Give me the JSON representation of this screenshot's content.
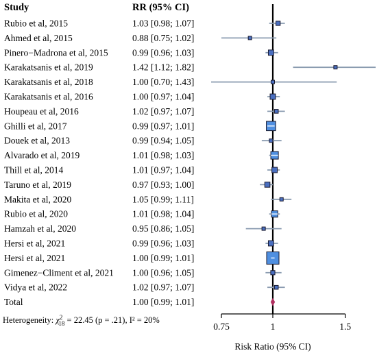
{
  "chart_data": {
    "type": "forest",
    "headers": {
      "study": "Study",
      "rr": "RR (95% CI)"
    },
    "studies": [
      {
        "study": "Rubio et al, 2015",
        "rr_text": "1.03 [0.98; 1.07]",
        "rr": 1.03,
        "lo": 0.98,
        "hi": 1.07
      },
      {
        "study": "Ahmed et al, 2015",
        "rr_text": "0.88 [0.75; 1.02]",
        "rr": 0.88,
        "lo": 0.75,
        "hi": 1.02
      },
      {
        "study": "Pinero−Madrona et al, 2015",
        "rr_text": "0.99 [0.96; 1.03]",
        "rr": 0.99,
        "lo": 0.96,
        "hi": 1.03
      },
      {
        "study": "Karakatsanis et al, 2019",
        "rr_text": "1.42 [1.12; 1.82]",
        "rr": 1.42,
        "lo": 1.12,
        "hi": 1.82
      },
      {
        "study": "Karakatsanis et al, 2018",
        "rr_text": "1.00 [0.70; 1.43]",
        "rr": 1.0,
        "lo": 0.7,
        "hi": 1.43
      },
      {
        "study": "Karakatsanis et al, 2016",
        "rr_text": "1.00 [0.97; 1.04]",
        "rr": 1.0,
        "lo": 0.97,
        "hi": 1.04
      },
      {
        "study": "Houpeau et al, 2016",
        "rr_text": "1.02 [0.97; 1.07]",
        "rr": 1.02,
        "lo": 0.97,
        "hi": 1.07
      },
      {
        "study": "Ghilli et al, 2017",
        "rr_text": "0.99 [0.97; 1.01]",
        "rr": 0.99,
        "lo": 0.97,
        "hi": 1.01
      },
      {
        "study": "Douek et al, 2013",
        "rr_text": "0.99 [0.94; 1.05]",
        "rr": 0.99,
        "lo": 0.94,
        "hi": 1.05
      },
      {
        "study": "Alvarado et al, 2019",
        "rr_text": "1.01 [0.98; 1.03]",
        "rr": 1.01,
        "lo": 0.98,
        "hi": 1.03
      },
      {
        "study": "Thill et al, 2014",
        "rr_text": "1.01 [0.97; 1.04]",
        "rr": 1.01,
        "lo": 0.97,
        "hi": 1.04
      },
      {
        "study": "Taruno et al, 2019",
        "rr_text": "0.97 [0.93; 1.00]",
        "rr": 0.97,
        "lo": 0.93,
        "hi": 1.0
      },
      {
        "study": "Makita et al, 2020",
        "rr_text": "1.05 [0.99; 1.11]",
        "rr": 1.05,
        "lo": 0.99,
        "hi": 1.11
      },
      {
        "study": "Rubio et al, 2020",
        "rr_text": "1.01 [0.98; 1.04]",
        "rr": 1.01,
        "lo": 0.98,
        "hi": 1.04
      },
      {
        "study": "Hamzah et al, 2020",
        "rr_text": "0.95 [0.86; 1.05]",
        "rr": 0.95,
        "lo": 0.86,
        "hi": 1.05
      },
      {
        "study": "Hersi et al, 2021",
        "rr_text": "0.99 [0.96; 1.03]",
        "rr": 0.99,
        "lo": 0.96,
        "hi": 1.03
      },
      {
        "study": "Hersi et al, 2021",
        "rr_text": "1.00 [0.99; 1.01]",
        "rr": 1.0,
        "lo": 0.99,
        "hi": 1.01
      },
      {
        "study": "Gimenez−Climent et al, 2021",
        "rr_text": "1.00 [0.96; 1.05]",
        "rr": 1.0,
        "lo": 0.96,
        "hi": 1.05
      },
      {
        "study": "Vidya et al, 2022",
        "rr_text": "1.02 [0.97; 1.07]",
        "rr": 1.02,
        "lo": 0.97,
        "hi": 1.07
      }
    ],
    "total": {
      "study": "Total",
      "rr_text": "1.00 [0.99; 1.01]",
      "rr": 1.0,
      "lo": 0.99,
      "hi": 1.01
    },
    "heterogeneity": {
      "prefix": "Heterogeneity: ",
      "chi": "χ",
      "sup": "2",
      "sub": "18",
      "rest": " = 22.45 (p = .21), I² = 20%"
    },
    "x_axis": {
      "label": "Risk Ratio (95% CI)",
      "ticks": [
        0.75,
        1,
        1.5
      ],
      "tick_labels": [
        "0.75",
        "1",
        "1.5"
      ],
      "scale": "log",
      "range": [
        0.7,
        1.85
      ]
    },
    "colors": {
      "box_fill": "#4f8fe0",
      "box_fill_small": "#4a6fc0",
      "box_stroke": "#1a1a2e",
      "ci_line": "#8a9bb0",
      "diamond": "#b03060",
      "ref_line": "#000000"
    }
  }
}
